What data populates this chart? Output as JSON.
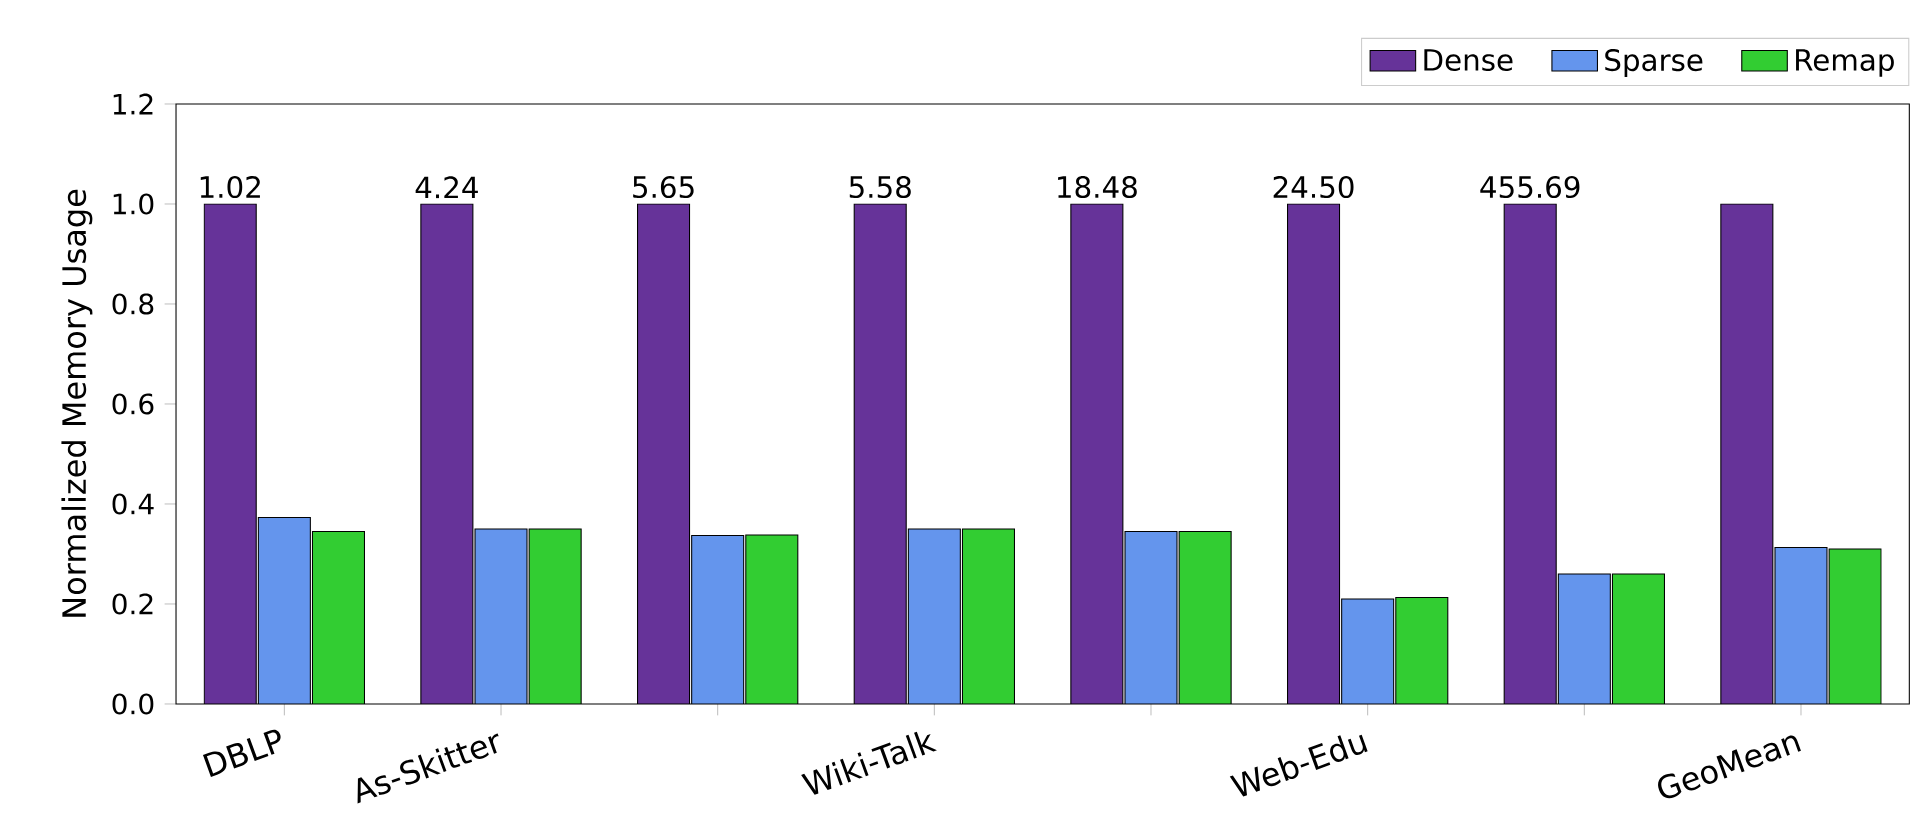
{
  "chart_data": {
    "type": "bar",
    "ylabel": "Normalized Memory Usage",
    "categories": [
      "DBLP",
      "As-Skitter",
      null,
      "Wiki-Talk",
      null,
      "Web-Edu",
      null,
      "GeoMean"
    ],
    "series": [
      {
        "name": "Dense",
        "color": "#663399",
        "values": [
          1.0,
          1.0,
          1.0,
          1.0,
          1.0,
          1.0,
          1.0,
          1.0
        ]
      },
      {
        "name": "Sparse",
        "color": "#6495ed",
        "values": [
          0.373,
          0.35,
          0.337,
          0.35,
          0.345,
          0.21,
          0.26,
          0.313
        ]
      },
      {
        "name": "Remap",
        "color": "#32cd32",
        "values": [
          0.345,
          0.35,
          0.338,
          0.35,
          0.345,
          0.213,
          0.26,
          0.31
        ]
      }
    ],
    "ylim": [
      0,
      1.2
    ],
    "yticks": [
      {
        "value": 0,
        "label": "0.0"
      },
      0.2,
      0.4,
      0.6,
      0.8,
      {
        "value": 1,
        "label": "1.0"
      },
      1.2
    ],
    "annotations": [
      "1.02",
      "4.24",
      "5.65",
      "5.58",
      "18.48",
      "24.50",
      "455.69"
    ],
    "legend": "top right"
  }
}
